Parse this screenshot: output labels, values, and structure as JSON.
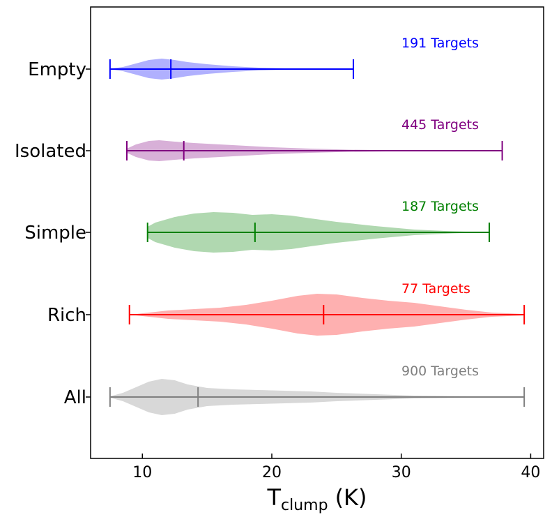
{
  "chart_data": {
    "type": "violin",
    "orientation": "horizontal",
    "xlabel": {
      "main": "T",
      "subscript": "clump",
      "unit": "(K)"
    },
    "xlim": [
      6,
      41
    ],
    "xticks": [
      10,
      20,
      30,
      40
    ],
    "grid": false,
    "series": [
      {
        "name": "Empty",
        "color": "#0000ff",
        "fill": "#b0b0fe",
        "count_label": "191 Targets",
        "min": 7.5,
        "median": 12.2,
        "max": 26.3,
        "profile": [
          [
            7.5,
            0.5
          ],
          [
            8.5,
            3
          ],
          [
            9.5,
            8
          ],
          [
            10.5,
            13
          ],
          [
            11.5,
            15
          ],
          [
            12.5,
            13
          ],
          [
            13.5,
            10
          ],
          [
            15,
            7
          ],
          [
            17,
            4
          ],
          [
            19,
            2
          ],
          [
            21,
            1
          ],
          [
            23,
            0.5
          ],
          [
            26.3,
            0
          ]
        ]
      },
      {
        "name": "Isolated",
        "color": "#800080",
        "fill": "#d8b0d8",
        "count_label": "445 Targets",
        "min": 8.8,
        "median": 13.2,
        "max": 37.8,
        "profile": [
          [
            8.8,
            3
          ],
          [
            9.5,
            9
          ],
          [
            10.5,
            14
          ],
          [
            11.3,
            15
          ],
          [
            12.5,
            13
          ],
          [
            14,
            11
          ],
          [
            16,
            9
          ],
          [
            18,
            7
          ],
          [
            20,
            5
          ],
          [
            23,
            3
          ],
          [
            26,
            1.5
          ],
          [
            30,
            0.8
          ],
          [
            37.8,
            0
          ]
        ]
      },
      {
        "name": "Simple",
        "color": "#008000",
        "fill": "#b0d8b0",
        "count_label": "187 Targets",
        "min": 10.4,
        "median": 18.7,
        "max": 36.8,
        "profile": [
          [
            10.4,
            8
          ],
          [
            11,
            14
          ],
          [
            12.5,
            22
          ],
          [
            14,
            27
          ],
          [
            15.5,
            29
          ],
          [
            17,
            28
          ],
          [
            18.5,
            25
          ],
          [
            20,
            26
          ],
          [
            21.5,
            24
          ],
          [
            23,
            20
          ],
          [
            25,
            15
          ],
          [
            28,
            9
          ],
          [
            31,
            4
          ],
          [
            34,
            1.5
          ],
          [
            36.8,
            0
          ]
        ]
      },
      {
        "name": "Rich",
        "color": "#ff0000",
        "fill": "#feb0b0",
        "count_label": "77 Targets",
        "min": 9.0,
        "median": 24.0,
        "max": 39.5,
        "profile": [
          [
            9,
            0
          ],
          [
            10,
            2
          ],
          [
            12,
            6
          ],
          [
            14,
            8
          ],
          [
            16,
            10
          ],
          [
            18,
            14
          ],
          [
            20,
            20
          ],
          [
            22,
            27
          ],
          [
            23.5,
            30
          ],
          [
            25,
            29
          ],
          [
            27,
            24
          ],
          [
            29,
            20
          ],
          [
            31,
            17
          ],
          [
            33,
            12
          ],
          [
            35,
            7
          ],
          [
            37,
            3
          ],
          [
            39.5,
            1
          ]
        ]
      },
      {
        "name": "All",
        "color": "#808080",
        "fill": "#d8d8d8",
        "count_label": "900 Targets",
        "min": 7.5,
        "median": 14.3,
        "max": 39.5,
        "profile": [
          [
            7.5,
            1
          ],
          [
            8.5,
            6
          ],
          [
            9.5,
            14
          ],
          [
            10.5,
            22
          ],
          [
            11.5,
            26
          ],
          [
            12.5,
            24
          ],
          [
            13.5,
            18
          ],
          [
            15,
            13
          ],
          [
            17,
            11
          ],
          [
            19,
            10
          ],
          [
            21,
            9
          ],
          [
            23,
            8
          ],
          [
            25,
            6
          ],
          [
            28,
            4
          ],
          [
            31,
            2
          ],
          [
            35,
            1
          ],
          [
            39.5,
            0.4
          ]
        ]
      }
    ]
  }
}
